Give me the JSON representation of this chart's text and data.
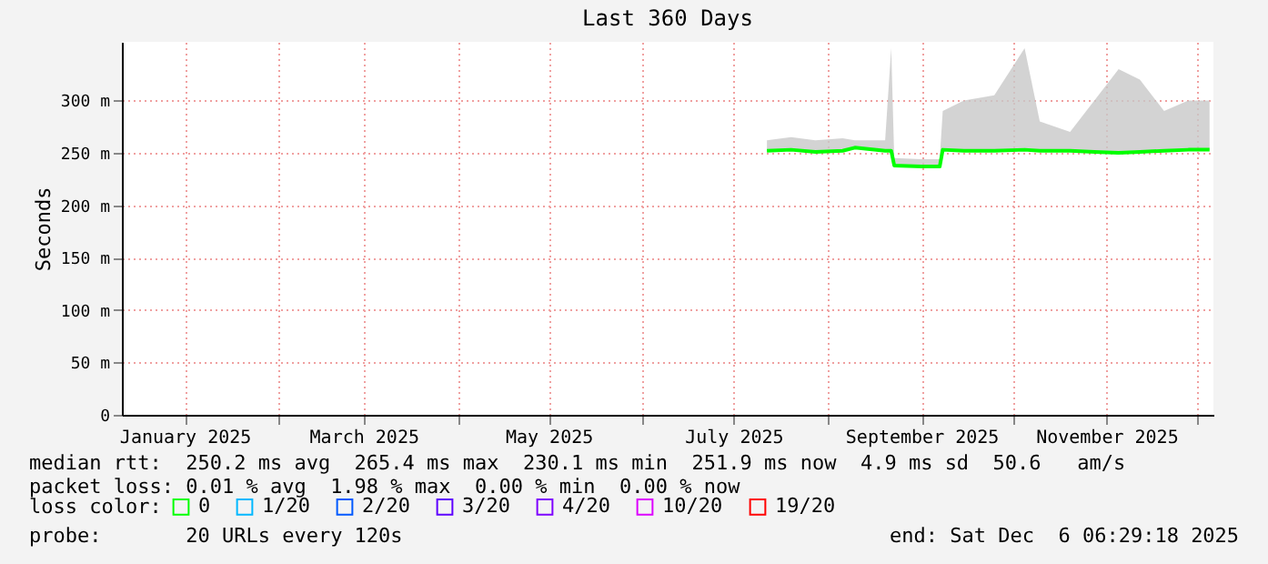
{
  "chart_data": {
    "type": "line",
    "title": "Last 360 Days",
    "ylabel": "Seconds",
    "legend_title": "loss color:",
    "legend": "bottom",
    "grid": true,
    "xlim": [
      "2024-12-11T06:29",
      "2025-12-06T06:29"
    ],
    "xticks": [
      {
        "value": "2025-01-01",
        "label": "January 2025"
      },
      {
        "value": "2025-02-01",
        "label": null
      },
      {
        "value": "2025-03-01",
        "label": "March 2025"
      },
      {
        "value": "2025-04-01",
        "label": null
      },
      {
        "value": "2025-05-01",
        "label": "May 2025"
      },
      {
        "value": "2025-06-01",
        "label": null
      },
      {
        "value": "2025-07-01",
        "label": "July 2025"
      },
      {
        "value": "2025-08-01",
        "label": null
      },
      {
        "value": "2025-09-01",
        "label": "September 2025"
      },
      {
        "value": "2025-10-01",
        "label": null
      },
      {
        "value": "2025-11-01",
        "label": "November 2025"
      },
      {
        "value": "2025-12-01",
        "label": null
      }
    ],
    "ylim": [
      0,
      356
    ],
    "yticks": [
      0,
      {
        "value": 50,
        "label": "50 m"
      },
      {
        "value": 100,
        "label": "100 m"
      },
      {
        "value": 150,
        "label": "150 m"
      },
      {
        "value": 200,
        "label": "200 m"
      },
      {
        "value": 250,
        "label": "250 m"
      },
      {
        "value": 300,
        "label": "300 m"
      }
    ],
    "x": [
      "2025-07-12",
      "2025-07-20",
      "2025-07-28",
      "2025-08-06",
      "2025-08-10",
      "2025-08-20",
      "2025-08-22",
      "2025-08-23",
      "2025-09-01",
      "2025-09-07",
      "2025-09-08",
      "2025-09-15",
      "2025-09-25",
      "2025-10-05",
      "2025-10-10",
      "2025-10-20",
      "2025-10-28",
      "2025-11-05",
      "2025-11-12",
      "2025-11-20",
      "2025-11-28",
      "2025-12-05"
    ],
    "series": [
      {
        "name": "0",
        "color": "#00ff00",
        "values": [
          252,
          253,
          251,
          252,
          255,
          252,
          252,
          238,
          237,
          237,
          253,
          252,
          252,
          253,
          252,
          252,
          251,
          250,
          251,
          252,
          253,
          253
        ],
        "lower": [
          252,
          253,
          251,
          252,
          255,
          252,
          252,
          238,
          237,
          237,
          253,
          252,
          252,
          253,
          252,
          252,
          251,
          250,
          251,
          252,
          253,
          253
        ],
        "upper": [
          262,
          265,
          262,
          264,
          262,
          262,
          350,
          245,
          244,
          244,
          290,
          300,
          305,
          350,
          280,
          270,
          300,
          330,
          320,
          290,
          300,
          300
        ]
      },
      {
        "name": "1/20",
        "color": "#00b8ff",
        "values": [
          null,
          null,
          null,
          null,
          null,
          null,
          null,
          null,
          null,
          null,
          null,
          null,
          null,
          null,
          null,
          null,
          null,
          null,
          null,
          null,
          null,
          null
        ]
      },
      {
        "name": "2/20",
        "color": "#0059ff",
        "values": [
          null,
          null,
          null,
          null,
          null,
          null,
          null,
          null,
          null,
          null,
          null,
          null,
          null,
          null,
          null,
          null,
          null,
          null,
          null,
          null,
          null,
          null
        ]
      },
      {
        "name": "3/20",
        "color": "#5e00ff",
        "values": [
          null,
          null,
          null,
          null,
          null,
          null,
          null,
          null,
          null,
          null,
          null,
          null,
          null,
          null,
          null,
          null,
          null,
          null,
          null,
          null,
          null,
          null
        ]
      },
      {
        "name": "4/20",
        "color": "#7e00ff",
        "values": [
          null,
          null,
          null,
          null,
          null,
          null,
          null,
          null,
          null,
          null,
          null,
          null,
          null,
          null,
          null,
          null,
          null,
          null,
          null,
          null,
          null,
          null
        ]
      },
      {
        "name": "10/20",
        "color": "#dd00ff",
        "values": [
          null,
          null,
          null,
          null,
          null,
          null,
          null,
          null,
          null,
          null,
          null,
          null,
          null,
          null,
          null,
          null,
          null,
          null,
          null,
          null,
          null,
          null
        ]
      },
      {
        "name": "19/20",
        "color": "#ff0000",
        "values": [
          null,
          null,
          null,
          null,
          null,
          null,
          null,
          null,
          null,
          null,
          null,
          null,
          null,
          null,
          null,
          null,
          null,
          null,
          null,
          null,
          null,
          null
        ]
      }
    ],
    "annotations": [
      "median rtt:  250.2 ms avg  265.4 ms max  230.1 ms min  251.9 ms now  4.9 ms sd  50.6   am/s",
      "packet loss: 0.01 % avg  1.98 % max  0.00 % min  0.00 % now",
      "probe:       20 URLs every 120s",
      "end: Sat Dec  6 06:29:18 2025"
    ]
  }
}
